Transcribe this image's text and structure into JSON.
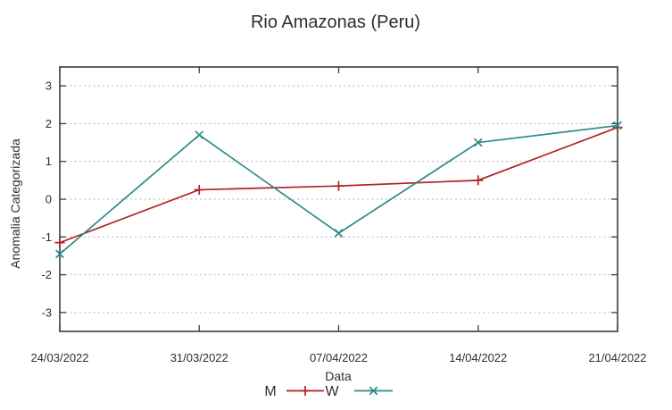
{
  "chart_data": {
    "type": "line",
    "title": "Rio Amazonas (Peru)",
    "xlabel": "Data",
    "ylabel": "Anomalia Categorizada",
    "categories": [
      "24/03/2022",
      "31/03/2022",
      "07/04/2022",
      "14/04/2022",
      "21/04/2022"
    ],
    "series": [
      {
        "name": "M",
        "color": "#b22222",
        "marker": "plus",
        "values": [
          -1.15,
          0.25,
          0.35,
          0.5,
          1.9
        ]
      },
      {
        "name": "W",
        "color": "#2e8b8b",
        "marker": "cross",
        "values": [
          -1.45,
          1.7,
          -0.9,
          1.5,
          1.95
        ]
      }
    ],
    "ylim": [
      -3.5,
      3.5
    ],
    "yticks": [
      -3,
      -2,
      -1,
      0,
      1,
      2,
      3
    ],
    "grid": "horizontal-dotted",
    "legend_position": "bottom-center",
    "axis_color": "#3c3c3c",
    "grid_color": "#b4b4b4",
    "text_color": "#2e2e2e",
    "background": "#ffffff"
  }
}
